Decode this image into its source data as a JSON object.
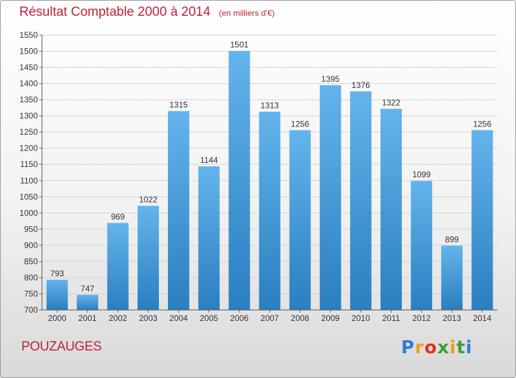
{
  "chart_data": {
    "type": "bar",
    "title": "Résultat Comptable 2000 à 2014",
    "unit": "(en milliers d'€)",
    "categories": [
      "2000",
      "2001",
      "2002",
      "2003",
      "2004",
      "2005",
      "2006",
      "2007",
      "2008",
      "2009",
      "2010",
      "2011",
      "2012",
      "2013",
      "2014"
    ],
    "values": [
      793,
      747,
      969,
      1022,
      1315,
      1144,
      1501,
      1313,
      1256,
      1395,
      1376,
      1322,
      1099,
      899,
      1256
    ],
    "ylim": [
      700,
      1550
    ],
    "yticks": [
      700,
      750,
      800,
      850,
      900,
      950,
      1000,
      1050,
      1100,
      1150,
      1200,
      1250,
      1300,
      1350,
      1400,
      1450,
      1500,
      1550
    ],
    "grid": true,
    "xlabel": "",
    "ylabel": "",
    "bar_color_top": "#64b4ec",
    "bar_color_bottom": "#2a7fc0"
  },
  "footer": {
    "commune": "POUZAUGES",
    "logo_letters": [
      "P",
      "r",
      "o",
      "x",
      "i",
      "t",
      "i"
    ]
  }
}
